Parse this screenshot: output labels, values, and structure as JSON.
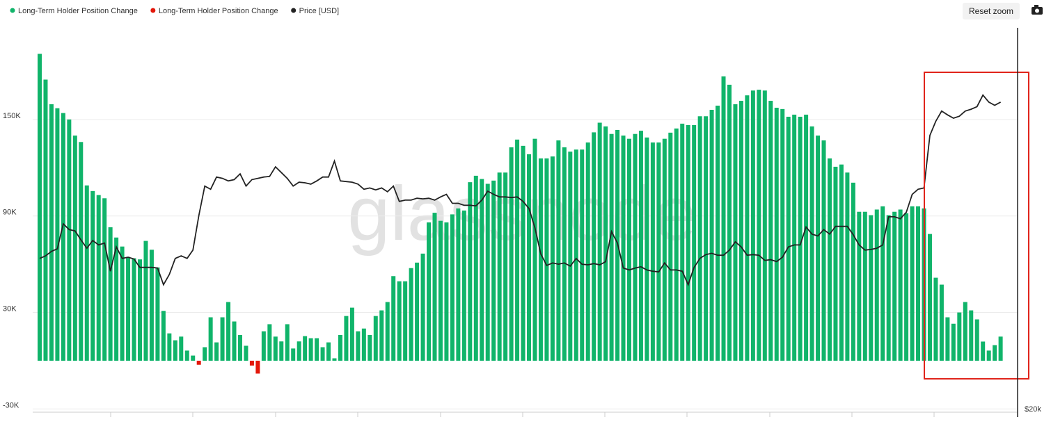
{
  "chart_data": {
    "type": "bar",
    "watermark": "glassnode",
    "button": "Reset zoom",
    "ylim": [
      -32000,
      207000
    ],
    "yticks": [
      {
        "value": -30000,
        "label": "-30K"
      },
      {
        "value": 30000,
        "label": "30K"
      },
      {
        "value": 90000,
        "label": "90K"
      },
      {
        "value": 150000,
        "label": "150K"
      }
    ],
    "y2lim": [
      20000,
      80000
    ],
    "y2ticks": [
      {
        "value": 20000,
        "label": "$20k"
      }
    ],
    "grid": true,
    "legend": "top-left",
    "series": [
      {
        "name": "Long-Term Holder Position Change",
        "color": "#10b46a",
        "values": [
          190800,
          174800,
          159500,
          157000,
          154000,
          150000,
          140000,
          136000,
          109000,
          105500,
          103000,
          101000,
          83000,
          76600,
          71000,
          64500,
          63700,
          63000,
          74500,
          69000,
          58000,
          31000,
          17000,
          12700,
          15000,
          6300,
          3200,
          null,
          8400,
          27000,
          11400,
          27000,
          36500,
          24400,
          16000,
          9300,
          null,
          null,
          18300,
          22700,
          15000,
          12000,
          22700,
          7600,
          12000,
          15300,
          14000,
          14000,
          8400,
          11400,
          1500,
          16000,
          27800,
          33000,
          18300,
          20000,
          16000,
          27800,
          31300,
          36500,
          52600,
          49400,
          49400,
          57600,
          61000,
          66600,
          86000,
          92000,
          87000,
          86000,
          91000,
          94700,
          93400,
          111000,
          115000,
          113000,
          110000,
          112000,
          117000,
          117000,
          132700,
          137500,
          133600,
          128400,
          138000,
          125800,
          125800,
          127000,
          137000,
          132700,
          130000,
          131300,
          131300,
          135700,
          142000,
          148000,
          145700,
          141000,
          143500,
          140000,
          138000,
          141000,
          143000,
          138800,
          135700,
          135700,
          138000,
          141800,
          144400,
          147400,
          146500,
          146500,
          152000,
          152000,
          156000,
          158600,
          176800,
          171600,
          159500,
          161600,
          165000,
          168000,
          168500,
          168000,
          161600,
          157300,
          156500,
          151700,
          153000,
          151700,
          153000,
          145700,
          140000,
          137000,
          125800,
          120600,
          122000,
          117000,
          110700,
          92600,
          92600,
          90500,
          94000,
          96000,
          90500,
          92600,
          94000,
          91700,
          96000,
          96000,
          94700,
          78800,
          51600,
          47300,
          27000,
          23000,
          30000,
          36500,
          31300,
          25700,
          11900,
          6300,
          9700,
          15000
        ]
      },
      {
        "name": "Long-Term Holder Position Change",
        "color": "#e3170a",
        "values": [
          null,
          null,
          null,
          null,
          null,
          null,
          null,
          null,
          null,
          null,
          null,
          null,
          null,
          null,
          null,
          null,
          null,
          null,
          null,
          null,
          null,
          null,
          null,
          null,
          null,
          null,
          null,
          -2500,
          null,
          null,
          null,
          null,
          null,
          null,
          null,
          null,
          -3000,
          -8000,
          null,
          null,
          null,
          null,
          null,
          null,
          null,
          null,
          null,
          null,
          null,
          null,
          null,
          null,
          null,
          null,
          null,
          null,
          null,
          null,
          null,
          null,
          null,
          null,
          null,
          null,
          null,
          null,
          null,
          null,
          null,
          null,
          null,
          null,
          null,
          null,
          null,
          null,
          null,
          null,
          null,
          null,
          null,
          null,
          null,
          null,
          null,
          null,
          null,
          null,
          null,
          null,
          null,
          null,
          null,
          null,
          null,
          null,
          null,
          null,
          null,
          null,
          null,
          null,
          null,
          null,
          null,
          null,
          null,
          null,
          null,
          null,
          null,
          null,
          null,
          null,
          null,
          null,
          null,
          null,
          null,
          null,
          null,
          null,
          null,
          null,
          null,
          null,
          null,
          null,
          null,
          null,
          null,
          null,
          null,
          null,
          null,
          null,
          null,
          null,
          null,
          null,
          null,
          null,
          null,
          null,
          null,
          null,
          null,
          null,
          null,
          null,
          null,
          null,
          null,
          null,
          null,
          null,
          null,
          null,
          null,
          null,
          null,
          null,
          null,
          null
        ]
      },
      {
        "name": "Price [USD]",
        "color": "#222222",
        "axis": "y2",
        "values": [
          44000,
          44400,
          45100,
          45500,
          49400,
          48500,
          48300,
          46900,
          45600,
          46800,
          46100,
          46400,
          42000,
          45800,
          44000,
          44200,
          43900,
          42600,
          42600,
          42600,
          42500,
          39900,
          41500,
          44000,
          44400,
          44000,
          45300,
          50700,
          55300,
          54800,
          56700,
          56500,
          56100,
          56300,
          57200,
          55300,
          56300,
          56500,
          56700,
          56800,
          58300,
          57400,
          56500,
          55300,
          55900,
          55800,
          55600,
          56100,
          56700,
          56700,
          59200,
          56100,
          56000,
          55900,
          55600,
          54800,
          55000,
          54700,
          55000,
          54400,
          55300,
          52900,
          53100,
          53100,
          53400,
          53300,
          53400,
          53100,
          53600,
          54000,
          52600,
          52600,
          52300,
          52300,
          52200,
          53100,
          54500,
          54000,
          53600,
          53600,
          53500,
          53600,
          52900,
          51800,
          48800,
          44700,
          42900,
          43300,
          43100,
          43300,
          42800,
          44000,
          43100,
          43000,
          43200,
          43000,
          43500,
          48200,
          46400,
          42500,
          42200,
          42500,
          42700,
          42200,
          42000,
          41900,
          43300,
          42200,
          42200,
          42000,
          39900,
          42600,
          44000,
          44600,
          44800,
          44500,
          44500,
          45300,
          46600,
          45800,
          44500,
          44600,
          44500,
          43700,
          43800,
          43500,
          44200,
          45800,
          46100,
          46100,
          48900,
          47800,
          47500,
          48500,
          47800,
          49000,
          49000,
          49000,
          47700,
          46100,
          45300,
          45400,
          45600,
          46100,
          50500,
          50500,
          50200,
          51200,
          54000,
          54800,
          55000,
          63200,
          65400,
          67000,
          66400,
          65900,
          66200,
          67000,
          67300,
          67700,
          69500,
          68400,
          67900,
          68400
        ]
      }
    ]
  }
}
